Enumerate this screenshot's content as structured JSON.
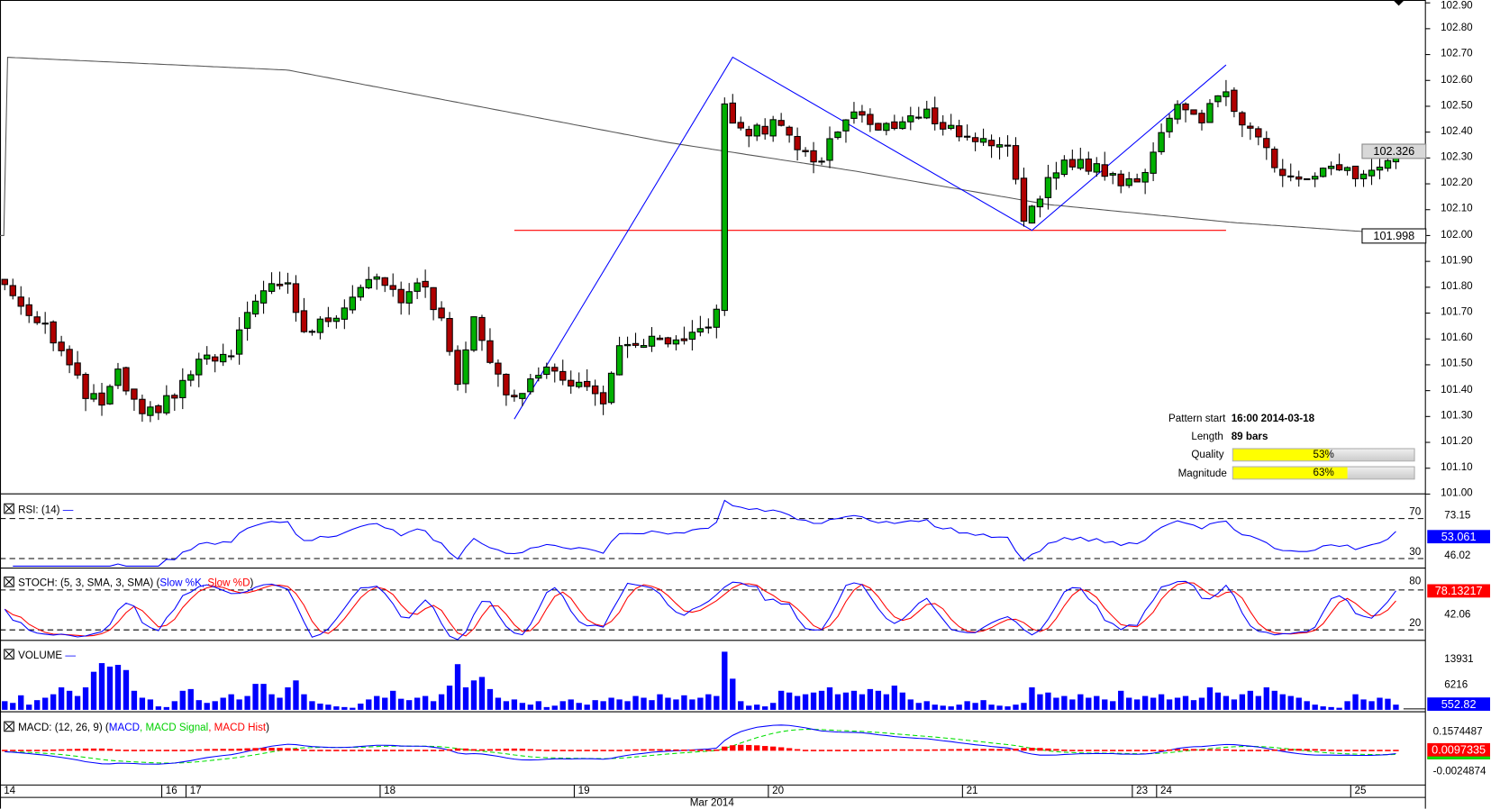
{
  "chart_data": {
    "type": "candlestick",
    "instrument_hint": "",
    "price_axis_labels": [
      "102.90",
      "102.80",
      "102.70",
      "102.60",
      "102.50",
      "102.40",
      "102.30",
      "102.20",
      "102.10",
      "102.00",
      "101.90",
      "101.80",
      "101.70",
      "101.60",
      "101.50",
      "101.40",
      "101.30",
      "101.20",
      "101.10",
      "101.00"
    ],
    "ylim": [
      101.0,
      102.9
    ],
    "bar_count": 173,
    "close_keypoints": [
      [
        0,
        101.81
      ],
      [
        2,
        101.73
      ],
      [
        5,
        101.66
      ],
      [
        10,
        101.38
      ],
      [
        12,
        101.35
      ],
      [
        14,
        101.46
      ],
      [
        17,
        101.29
      ],
      [
        21,
        101.38
      ],
      [
        24,
        101.51
      ],
      [
        28,
        101.53
      ],
      [
        31,
        101.77
      ],
      [
        35,
        101.81
      ],
      [
        37,
        101.62
      ],
      [
        41,
        101.7
      ],
      [
        44,
        101.81
      ],
      [
        46,
        101.86
      ],
      [
        49,
        101.76
      ],
      [
        52,
        101.81
      ],
      [
        54,
        101.66
      ],
      [
        56,
        101.44
      ],
      [
        58,
        101.7
      ],
      [
        61,
        101.44
      ],
      [
        63,
        101.36
      ],
      [
        65,
        101.46
      ],
      [
        66,
        101.48
      ],
      [
        70,
        101.44
      ],
      [
        74,
        101.37
      ],
      [
        76,
        101.55
      ],
      [
        79,
        101.59
      ],
      [
        84,
        101.57
      ],
      [
        88,
        101.7
      ],
      [
        89,
        102.49
      ],
      [
        91,
        102.4
      ],
      [
        94,
        102.41
      ],
      [
        96,
        102.45
      ],
      [
        98,
        102.34
      ],
      [
        101,
        102.27
      ],
      [
        102,
        102.38
      ],
      [
        105,
        102.49
      ],
      [
        108,
        102.4
      ],
      [
        111,
        102.45
      ],
      [
        114,
        102.47
      ],
      [
        117,
        102.41
      ],
      [
        121,
        102.36
      ],
      [
        124,
        102.36
      ],
      [
        126,
        102.08
      ],
      [
        128,
        102.12
      ],
      [
        129,
        102.2
      ],
      [
        131,
        102.3
      ],
      [
        134,
        102.27
      ],
      [
        136,
        102.25
      ],
      [
        138,
        102.19
      ],
      [
        141,
        102.25
      ],
      [
        144,
        102.47
      ],
      [
        146,
        102.51
      ],
      [
        148,
        102.45
      ],
      [
        151,
        102.56
      ],
      [
        153,
        102.45
      ],
      [
        156,
        102.34
      ],
      [
        157,
        102.25
      ],
      [
        161,
        102.21
      ],
      [
        164,
        102.25
      ],
      [
        168,
        102.23
      ],
      [
        171,
        102.29
      ],
      [
        172,
        102.33
      ]
    ],
    "moving_average": [
      [
        0,
        102.69
      ],
      [
        35,
        102.64
      ],
      [
        82,
        102.36
      ],
      [
        105,
        102.25
      ],
      [
        129,
        102.12
      ],
      [
        152,
        102.05
      ],
      [
        175,
        102.0
      ]
    ],
    "pattern_lines": [
      [
        63,
        101.29
      ],
      [
        90,
        102.69
      ],
      [
        127,
        102.02
      ],
      [
        151,
        102.66
      ]
    ],
    "support_level": {
      "price": 102.02,
      "from_bar": 63,
      "to_bar": 151
    },
    "current_price_label": "102.326",
    "level_label": "101.998",
    "volume": [
      2500,
      2000,
      4200,
      1500,
      2800,
      3500,
      4500,
      6500,
      5500,
      4000,
      6500,
      11000,
      13500,
      12500,
      13000,
      11500,
      5500,
      3500,
      3000,
      1000,
      800,
      2500,
      5500,
      6000,
      2800,
      2000,
      2500,
      3500,
      4500,
      3000,
      4000,
      7500,
      7500,
      4500,
      3500,
      6500,
      8500,
      4500,
      2500,
      1800,
      1500,
      1000,
      800,
      600,
      1800,
      3000,
      4000,
      3500,
      5500,
      3200,
      2800,
      3500,
      4000,
      2500,
      4500,
      7000,
      13200,
      6500,
      8500,
      9500,
      6000,
      3500,
      2500,
      3000,
      2000,
      1500,
      2500,
      800,
      1200,
      2500,
      3000,
      2000,
      1500,
      2800,
      2500,
      3500,
      3000,
      2500,
      4000,
      3500,
      2800,
      4500,
      3500,
      3000,
      4200,
      3000,
      3500,
      4500,
      4000,
      16800,
      9000,
      2500,
      1200,
      1500,
      1000,
      2000,
      5500,
      5000,
      4000,
      4500,
      5000,
      5500,
      6500,
      4500,
      5000,
      5500,
      4500,
      6000,
      5500,
      4500,
      7000,
      5000,
      3000,
      2000,
      2500,
      1500,
      1200,
      1000,
      1500,
      2500,
      2000,
      2800,
      1500,
      1200,
      1000,
      1500,
      2000,
      6500,
      4500,
      5000,
      3500,
      4000,
      3000,
      4500,
      3500,
      4000,
      3000,
      2500,
      5500,
      3500,
      3000,
      4000,
      3500,
      4500,
      3000,
      3500,
      4000,
      2800,
      3500,
      6500,
      5000,
      4000,
      3000,
      4500,
      5500,
      4000,
      6500,
      5500,
      4500,
      4000,
      3500,
      2500,
      1500,
      1000,
      800,
      600,
      2500,
      4500,
      3000,
      2500,
      3500,
      3200,
      1500
    ],
    "x_tick_labels": [
      {
        "label": "14",
        "bar": 0
      },
      {
        "label": "16",
        "bar": 20
      },
      {
        "label": "17",
        "bar": 23
      },
      {
        "label": "18",
        "bar": 47
      },
      {
        "label": "19",
        "bar": 71
      },
      {
        "label": "20",
        "bar": 95
      },
      {
        "label": "21",
        "bar": 119
      },
      {
        "label": "23",
        "bar": 140
      },
      {
        "label": "24",
        "bar": 143
      },
      {
        "label": "25",
        "bar": 167
      }
    ],
    "x_month_label": "Mar 2014"
  },
  "pattern_info": {
    "start_label": "Pattern start",
    "start_value": "16:00 2014-03-18",
    "length_label": "Length",
    "length_value": "89 bars",
    "quality_label": "Quality",
    "quality_value": "53%",
    "quality_pct": 53,
    "magnitude_label": "Magnitude",
    "magnitude_value": "63%",
    "magnitude_pct": 63
  },
  "rsi": {
    "title": "RSI: (14)",
    "upper": "70",
    "lower": "30",
    "axis1": "73.15",
    "axis2": "46.02",
    "current": "53.061"
  },
  "stoch": {
    "title": "STOCH: (5, 3, SMA, 3, SMA) (",
    "k": "Slow %K",
    "sep": ", ",
    "d": "Slow %D",
    "close": ")",
    "upper": "80",
    "lower": "20",
    "axis": "42.06",
    "current": "78.13217"
  },
  "volume_panel": {
    "title": "VOLUME",
    "axis1": "13931",
    "axis2": "6216",
    "current": "552.82"
  },
  "macd": {
    "title": "MACD: (12, 26, 9) (",
    "macd": "MACD",
    "sep1": ", ",
    "signal": "MACD Signal",
    "sep2": ", ",
    "hist": "MACD Hist",
    "close": ")",
    "axis1": "0.1574487",
    "axis2": "-0.0024874",
    "current": "0.0097335"
  },
  "colors": {
    "up": "#00b000",
    "down": "#b00000",
    "blue": "#0000ff",
    "red": "#ff0000",
    "green": "#00e000",
    "ma": "#555555"
  }
}
